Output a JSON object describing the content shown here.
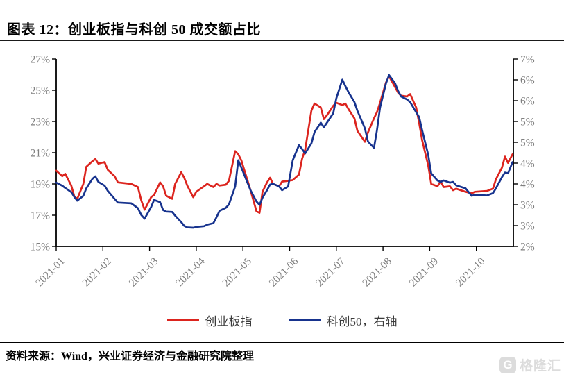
{
  "header": {
    "title": "图表 12：创业板指与科创 50 成交额占比"
  },
  "footer": {
    "source_text": "资料来源：Wind，兴业证券经济与金融研究院整理"
  },
  "watermark": {
    "icon_letter": "G",
    "brand": "格隆汇"
  },
  "colors": {
    "red_series": "#dc241e",
    "blue_series": "#17338e",
    "axis_label": "#7f7f7f",
    "axis_line": "#000000",
    "title_rule": "#1a1a1a",
    "watermark": "#d9d9d9"
  },
  "chart_data": {
    "type": "line",
    "title": "创业板指与科创 50 成交额占比",
    "x_tick_labels": [
      "2021-01",
      "2021-02",
      "2021-03",
      "2021-04",
      "2021-05",
      "2021-06",
      "2021-07",
      "2021-08",
      "2021-09",
      "2021-10"
    ],
    "left_axis": {
      "tick_labels": [
        "27%",
        "25%",
        "23%",
        "21%",
        "19%",
        "17%",
        "15%"
      ],
      "min": 15,
      "max": 27,
      "grid": false
    },
    "right_axis": {
      "tick_labels": [
        "7%",
        "6%",
        "6%",
        "5%",
        "5%",
        "4%",
        "4%",
        "3%",
        "3%",
        "2%"
      ],
      "min": 2,
      "max": 7,
      "grid": false
    },
    "legend_position": "bottom",
    "dates": [
      "01-01",
      "01-05",
      "01-07",
      "01-11",
      "01-13",
      "01-15",
      "01-19",
      "01-21",
      "01-25",
      "01-27",
      "01-29",
      "02-02",
      "02-04",
      "02-08",
      "02-10",
      "02-18",
      "02-22",
      "02-24",
      "02-26",
      "03-02",
      "03-04",
      "03-08",
      "03-10",
      "03-12",
      "03-16",
      "03-18",
      "03-22",
      "03-24",
      "03-26",
      "03-30",
      "04-01",
      "04-06",
      "04-08",
      "04-12",
      "04-14",
      "04-16",
      "04-20",
      "04-22",
      "04-26",
      "04-28",
      "04-30",
      "05-06",
      "05-10",
      "05-12",
      "05-14",
      "05-17",
      "05-19",
      "05-21",
      "05-25",
      "05-27",
      "05-31",
      "06-03",
      "06-07",
      "06-09",
      "06-11",
      "06-15",
      "06-17",
      "06-21",
      "06-23",
      "06-25",
      "06-29",
      "07-01",
      "07-05",
      "07-07",
      "07-09",
      "07-13",
      "07-15",
      "07-20",
      "07-22",
      "07-26",
      "07-28",
      "07-30",
      "08-03",
      "08-05",
      "08-09",
      "08-11",
      "08-13",
      "08-17",
      "08-19",
      "08-23",
      "08-25",
      "08-27",
      "08-31",
      "09-02",
      "09-06",
      "09-08",
      "09-10",
      "09-14",
      "09-16",
      "09-18",
      "09-24",
      "09-28",
      "09-30",
      "10-08",
      "10-12",
      "10-14",
      "10-18",
      "10-20",
      "10-22",
      "10-25"
    ],
    "series": [
      {
        "name": "创业板指",
        "axis": "left",
        "color": "#dc241e",
        "unit": "%",
        "values": [
          19.85,
          19.5,
          19.65,
          18.9,
          18.2,
          18.05,
          19.0,
          20.1,
          20.45,
          20.6,
          20.3,
          20.4,
          19.9,
          19.5,
          19.1,
          19.0,
          18.8,
          17.95,
          17.35,
          18.15,
          18.3,
          19.1,
          18.85,
          18.25,
          18.05,
          19.0,
          19.75,
          19.4,
          18.9,
          18.15,
          18.5,
          18.85,
          19.0,
          18.8,
          19.0,
          18.9,
          18.95,
          19.2,
          21.1,
          20.9,
          20.5,
          18.6,
          17.25,
          17.15,
          18.5,
          19.1,
          19.4,
          19.0,
          18.85,
          19.15,
          19.2,
          19.25,
          19.6,
          20.6,
          21.2,
          23.7,
          24.15,
          23.9,
          23.15,
          23.4,
          24.0,
          24.2,
          24.05,
          24.15,
          23.8,
          23.2,
          22.4,
          21.7,
          22.3,
          23.2,
          23.6,
          24.2,
          25.5,
          25.9,
          25.2,
          24.85,
          24.65,
          24.6,
          24.75,
          23.9,
          22.9,
          21.8,
          20.2,
          19.0,
          18.85,
          19.15,
          18.8,
          18.85,
          18.6,
          18.7,
          18.5,
          18.4,
          18.5,
          18.55,
          18.7,
          19.3,
          20.05,
          20.75,
          20.35,
          20.9
        ]
      },
      {
        "name": "科创50，右轴",
        "axis": "right",
        "color": "#17338e",
        "unit": "%",
        "values": [
          3.7,
          3.62,
          3.56,
          3.45,
          3.32,
          3.22,
          3.35,
          3.55,
          3.8,
          3.87,
          3.72,
          3.62,
          3.48,
          3.27,
          3.17,
          3.15,
          3.02,
          2.84,
          2.74,
          3.05,
          3.24,
          3.18,
          2.97,
          2.93,
          2.92,
          2.82,
          2.65,
          2.55,
          2.51,
          2.5,
          2.52,
          2.54,
          2.58,
          2.62,
          2.78,
          2.95,
          3.03,
          3.12,
          3.6,
          4.3,
          4.1,
          3.5,
          3.2,
          3.11,
          3.3,
          3.5,
          3.65,
          3.67,
          3.6,
          3.5,
          3.6,
          4.3,
          4.7,
          4.6,
          4.48,
          4.75,
          5.05,
          5.3,
          5.18,
          5.3,
          5.55,
          5.95,
          6.45,
          6.28,
          6.12,
          5.85,
          5.62,
          5.15,
          4.8,
          4.63,
          5.1,
          5.7,
          6.35,
          6.57,
          6.35,
          6.15,
          6.0,
          5.92,
          5.85,
          5.58,
          5.45,
          5.1,
          4.45,
          3.95,
          3.76,
          3.72,
          3.76,
          3.7,
          3.72,
          3.63,
          3.55,
          3.35,
          3.38,
          3.36,
          3.42,
          3.55,
          3.85,
          3.97,
          3.95,
          4.25
        ]
      }
    ]
  }
}
